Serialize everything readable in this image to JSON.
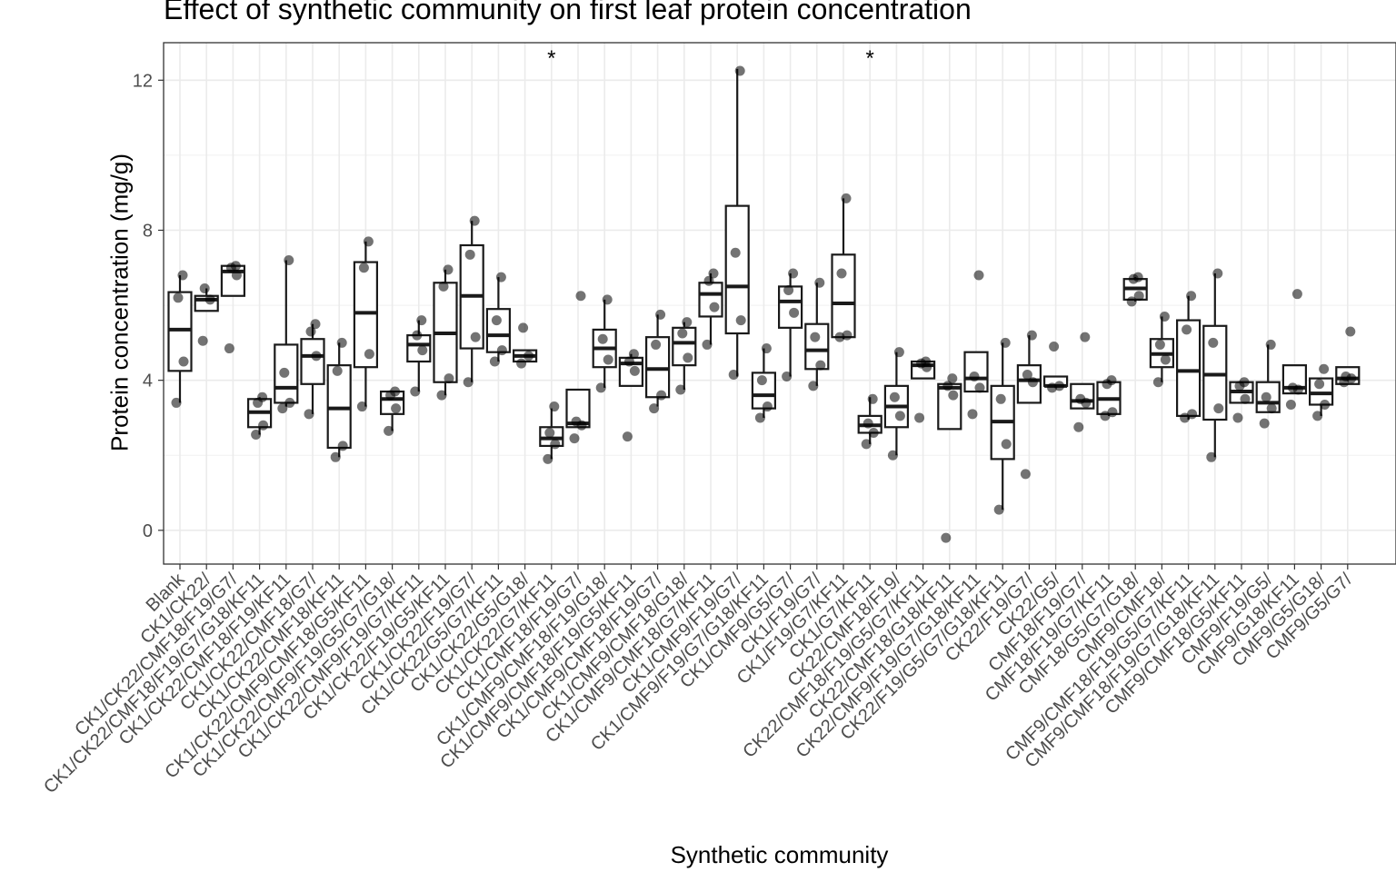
{
  "chart_data": {
    "type": "box",
    "title": "Effect of synthetic community on first leaf protein concentration",
    "xlabel": "Synthetic community",
    "ylabel": "Protein concentration (mg/g)",
    "ylim": [
      -0.9,
      13
    ],
    "yticks": [
      0,
      4,
      8,
      12
    ],
    "grid": true,
    "significance_marker": "*",
    "categories": [
      "Blank",
      "CK1/CK22/",
      "CK1/CK22/CMF18/F19/G7/",
      "CK1/CK22/CMF18/F19/G7/G18/KF11",
      "CK1/CK22/CMF18/F19/KF11",
      "CK1/CK22/CMF18/G7/",
      "CK1/CK22/CMF18/KF11",
      "CK1/CK22/CMF9/CMF18/G5/KF11",
      "CK1/CK22/CMF9/F19/G5/G7/G18/",
      "CK1/CK22/CMF9/F19/G7/KF11",
      "CK1/CK22/F19/G5/KF11",
      "CK1/CK22/F19/G7/",
      "CK1/CK22/G5/G7/KF11",
      "CK1/CK22/G5/G18/",
      "CK1/CK22/G7/KF11",
      "CK1/CMF18/F19/G7/",
      "CK1/CMF9/CMF18/F19/G18/",
      "CK1/CMF9/CMF18/F19/G5/KF11",
      "CK1/CMF9/CMF18/F19/G7/",
      "CK1/CMF9/CMF18/G18/",
      "CK1/CMF9/CMF18/G7/KF11",
      "CK1/CMF9/F19/G7/",
      "CK1/CMF9/F19/G7/G18/KF11",
      "CK1/CMF9/G5/G7/",
      "CK1/F19/G7/",
      "CK1/F19/G7/KF11",
      "CK1/G7/KF11",
      "CK22/CMF18/F19/",
      "CK22/CMF18/F19/G5/G7/KF11",
      "CK22/CMF18/G18/KF11",
      "CK22/CMF9/F19/G7/G18/KF11",
      "CK22/F19/G5/G7/G18/KF11",
      "CK22/F19/G7/",
      "CK22/G5/",
      "CMF18/F19/G7/",
      "CMF18/F19/G7/KF11",
      "CMF18/G5/G7/G18/",
      "CMF9/CMF18/",
      "CMF9/CMF18/F19/G5/G7/KF11",
      "CMF9/CMF18/F19/G7/G18/KF11",
      "CMF9/CMF18/G5/KF11",
      "CMF9/F19/G5/",
      "CMF9/G18/KF11",
      "CMF9/G5/G18/",
      "CMF9/G5/G7/"
    ],
    "series": [
      {
        "values": [
          {
            "min": 3.4,
            "q1": 4.25,
            "median": 5.35,
            "q3": 6.35,
            "max": 6.8,
            "points": [
              3.4,
              4.5,
              6.2,
              6.8
            ]
          },
          {
            "min": 5.85,
            "q1": 5.85,
            "median": 6.15,
            "q3": 6.25,
            "max": 6.45,
            "points": [
              5.05,
              6.15,
              6.45
            ]
          },
          {
            "min": 6.25,
            "q1": 6.25,
            "median": 6.9,
            "q3": 7.05,
            "max": 7.05,
            "points": [
              4.85,
              6.8,
              7.0,
              7.05
            ]
          },
          {
            "min": 2.55,
            "q1": 2.75,
            "median": 3.15,
            "q3": 3.5,
            "max": 3.55,
            "points": [
              2.55,
              2.8,
              3.4,
              3.55
            ]
          },
          {
            "min": 3.3,
            "q1": 3.4,
            "median": 3.8,
            "q3": 4.95,
            "max": 7.2,
            "points": [
              3.25,
              3.4,
              4.2,
              7.2
            ]
          },
          {
            "min": 3.1,
            "q1": 3.9,
            "median": 4.65,
            "q3": 5.1,
            "max": 5.5,
            "points": [
              3.1,
              4.65,
              5.3,
              5.5
            ]
          },
          {
            "min": 1.95,
            "q1": 2.2,
            "median": 3.25,
            "q3": 4.4,
            "max": 5.0,
            "points": [
              1.95,
              2.25,
              4.25,
              5.0
            ]
          },
          {
            "min": 3.3,
            "q1": 4.35,
            "median": 5.8,
            "q3": 7.15,
            "max": 7.7,
            "points": [
              3.3,
              4.7,
              7.0,
              7.7
            ]
          },
          {
            "min": 2.65,
            "q1": 3.1,
            "median": 3.5,
            "q3": 3.7,
            "max": 3.7,
            "points": [
              2.65,
              3.25,
              3.6,
              3.7
            ]
          },
          {
            "min": 3.7,
            "q1": 4.5,
            "median": 4.95,
            "q3": 5.2,
            "max": 5.6,
            "points": [
              3.7,
              4.8,
              5.2,
              5.6
            ]
          },
          {
            "min": 3.6,
            "q1": 3.95,
            "median": 5.25,
            "q3": 6.6,
            "max": 6.95,
            "points": [
              3.6,
              4.05,
              6.5,
              6.95
            ]
          },
          {
            "min": 3.95,
            "q1": 4.85,
            "median": 6.25,
            "q3": 7.6,
            "max": 8.25,
            "points": [
              3.95,
              5.15,
              7.35,
              8.25
            ]
          },
          {
            "min": 4.5,
            "q1": 4.75,
            "median": 5.2,
            "q3": 5.9,
            "max": 6.75,
            "points": [
              4.5,
              4.8,
              5.6,
              6.75
            ]
          },
          {
            "min": 4.5,
            "q1": 4.5,
            "median": 4.65,
            "q3": 4.8,
            "max": 4.8,
            "points": [
              4.45,
              4.65,
              5.4
            ]
          },
          {
            "min": 1.9,
            "q1": 2.25,
            "median": 2.45,
            "q3": 2.75,
            "max": 3.25,
            "points": [
              1.9,
              2.3,
              2.6,
              3.3
            ]
          },
          {
            "min": 2.75,
            "q1": 2.75,
            "median": 2.85,
            "q3": 3.75,
            "max": 3.75,
            "points": [
              2.45,
              2.8,
              2.9,
              6.25
            ]
          },
          {
            "min": 3.8,
            "q1": 4.35,
            "median": 4.85,
            "q3": 5.35,
            "max": 6.15,
            "points": [
              3.8,
              4.55,
              5.1,
              6.15
            ]
          },
          {
            "min": 3.85,
            "q1": 3.85,
            "median": 4.45,
            "q3": 4.6,
            "max": 4.7,
            "points": [
              2.5,
              4.25,
              4.5,
              4.7
            ]
          },
          {
            "min": 3.3,
            "q1": 3.55,
            "median": 4.3,
            "q3": 5.15,
            "max": 5.75,
            "points": [
              3.25,
              3.6,
              4.95,
              5.75
            ]
          },
          {
            "min": 3.75,
            "q1": 4.4,
            "median": 5.0,
            "q3": 5.4,
            "max": 5.55,
            "points": [
              3.75,
              4.6,
              5.25,
              5.55
            ]
          },
          {
            "min": 4.95,
            "q1": 5.7,
            "median": 6.3,
            "q3": 6.6,
            "max": 6.85,
            "points": [
              4.95,
              5.95,
              6.65,
              6.85
            ]
          },
          {
            "min": 4.1,
            "q1": 5.25,
            "median": 6.5,
            "q3": 8.65,
            "max": 12.3,
            "points": [
              4.15,
              5.6,
              7.4,
              12.25
            ]
          },
          {
            "min": 3.0,
            "q1": 3.25,
            "median": 3.6,
            "q3": 4.2,
            "max": 4.85,
            "points": [
              3.0,
              3.3,
              4.0,
              4.85
            ]
          },
          {
            "min": 4.1,
            "q1": 5.4,
            "median": 6.1,
            "q3": 6.5,
            "max": 6.85,
            "points": [
              4.1,
              5.8,
              6.4,
              6.85
            ]
          },
          {
            "min": 3.85,
            "q1": 4.3,
            "median": 4.8,
            "q3": 5.5,
            "max": 6.6,
            "points": [
              3.85,
              4.4,
              5.15,
              6.6
            ]
          },
          {
            "min": 5.1,
            "q1": 5.15,
            "median": 6.05,
            "q3": 7.35,
            "max": 8.85,
            "points": [
              5.15,
              5.2,
              6.85,
              8.85
            ]
          },
          {
            "min": 2.3,
            "q1": 2.6,
            "median": 2.8,
            "q3": 3.05,
            "max": 3.55,
            "points": [
              2.3,
              2.6,
              2.85,
              3.5
            ]
          },
          {
            "min": 2.0,
            "q1": 2.75,
            "median": 3.3,
            "q3": 3.85,
            "max": 4.75,
            "points": [
              2.0,
              3.05,
              3.55,
              4.75
            ]
          },
          {
            "min": 4.05,
            "q1": 4.05,
            "median": 4.4,
            "q3": 4.5,
            "max": 4.5,
            "points": [
              3.0,
              4.35,
              4.45,
              4.5
            ]
          },
          {
            "min": 2.7,
            "q1": 2.7,
            "median": 3.8,
            "q3": 3.9,
            "max": 3.9,
            "points": [
              -0.2,
              3.6,
              3.85,
              4.05
            ]
          },
          {
            "min": 3.7,
            "q1": 3.7,
            "median": 4.05,
            "q3": 4.75,
            "max": 4.75,
            "points": [
              3.1,
              3.8,
              4.1,
              6.8
            ]
          },
          {
            "min": 0.55,
            "q1": 1.9,
            "median": 2.9,
            "q3": 3.85,
            "max": 5.0,
            "points": [
              0.55,
              2.3,
              3.5,
              5.0
            ]
          },
          {
            "min": 3.4,
            "q1": 3.4,
            "median": 4.0,
            "q3": 4.4,
            "max": 5.2,
            "points": [
              1.5,
              3.95,
              4.15,
              5.2
            ]
          },
          {
            "min": 3.8,
            "q1": 3.85,
            "median": 3.85,
            "q3": 4.1,
            "max": 4.1,
            "points": [
              3.8,
              3.85,
              4.9
            ]
          },
          {
            "min": 3.25,
            "q1": 3.25,
            "median": 3.45,
            "q3": 3.9,
            "max": 3.9,
            "points": [
              2.75,
              3.4,
              3.5,
              5.15
            ]
          },
          {
            "min": 3.05,
            "q1": 3.1,
            "median": 3.5,
            "q3": 3.95,
            "max": 4.0,
            "points": [
              3.05,
              3.15,
              3.9,
              4.0
            ]
          },
          {
            "min": 6.1,
            "q1": 6.15,
            "median": 6.45,
            "q3": 6.7,
            "max": 6.75,
            "points": [
              6.1,
              6.25,
              6.7,
              6.75
            ]
          },
          {
            "min": 3.95,
            "q1": 4.35,
            "median": 4.7,
            "q3": 5.1,
            "max": 5.7,
            "points": [
              3.95,
              4.55,
              4.95,
              5.7
            ]
          },
          {
            "min": 2.95,
            "q1": 3.05,
            "median": 4.25,
            "q3": 5.6,
            "max": 6.25,
            "points": [
              3.0,
              3.1,
              5.35,
              6.25
            ]
          },
          {
            "min": 1.95,
            "q1": 2.95,
            "median": 4.15,
            "q3": 5.45,
            "max": 6.85,
            "points": [
              1.95,
              3.25,
              5.0,
              6.85
            ]
          },
          {
            "min": 3.4,
            "q1": 3.4,
            "median": 3.7,
            "q3": 3.95,
            "max": 3.95,
            "points": [
              3.0,
              3.5,
              3.85,
              3.95
            ]
          },
          {
            "min": 3.15,
            "q1": 3.15,
            "median": 3.4,
            "q3": 3.95,
            "max": 4.95,
            "points": [
              2.85,
              3.25,
              3.55,
              4.95
            ]
          },
          {
            "min": 3.65,
            "q1": 3.65,
            "median": 3.8,
            "q3": 4.4,
            "max": 4.4,
            "points": [
              3.35,
              3.75,
              3.8,
              6.3
            ]
          },
          {
            "min": 3.05,
            "q1": 3.35,
            "median": 3.65,
            "q3": 4.05,
            "max": 4.05,
            "points": [
              3.05,
              3.35,
              3.9,
              4.3
            ]
          },
          {
            "min": 3.9,
            "q1": 3.9,
            "median": 4.05,
            "q3": 4.35,
            "max": 4.35,
            "points": [
              3.95,
              4.05,
              4.1,
              5.3
            ]
          }
        ]
      }
    ],
    "significant_categories": [
      14,
      26
    ]
  }
}
